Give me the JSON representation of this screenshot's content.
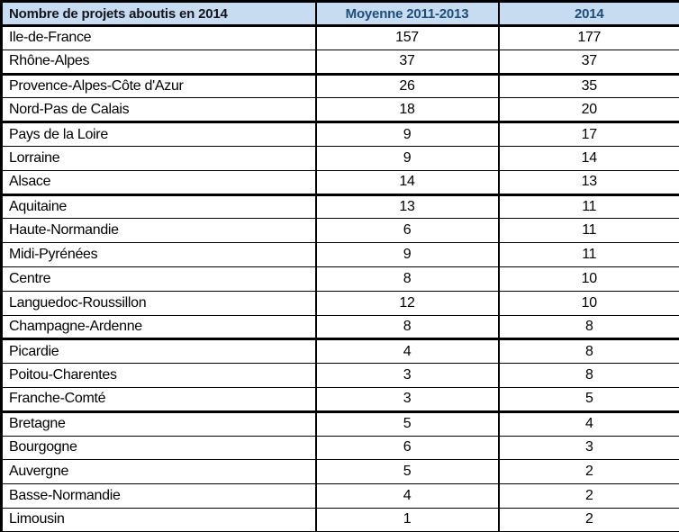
{
  "colors": {
    "header_bg": "#c7dcf1",
    "header_title_text": "#14141e",
    "header_numeric_text": "#1F4E79",
    "body_text": "#000000",
    "border": "#000000",
    "row_bg": "#ffffff"
  },
  "table": {
    "header": {
      "title": "Nombre de projets aboutis en 2014",
      "col_avg": "Moyenne 2011-2013",
      "col_2014": "2014"
    },
    "rows": [
      {
        "region": "Ile-de-France",
        "avg_2011_2013": 157,
        "value_2014": 177,
        "group_end": false
      },
      {
        "region": "Rhône-Alpes",
        "avg_2011_2013": 37,
        "value_2014": 37,
        "group_end": true
      },
      {
        "region": "Provence-Alpes-Côte d'Azur",
        "avg_2011_2013": 26,
        "value_2014": 35,
        "group_end": false
      },
      {
        "region": "Nord-Pas de Calais",
        "avg_2011_2013": 18,
        "value_2014": 20,
        "group_end": true
      },
      {
        "region": "Pays de la Loire",
        "avg_2011_2013": 9,
        "value_2014": 17,
        "group_end": false
      },
      {
        "region": "Lorraine",
        "avg_2011_2013": 9,
        "value_2014": 14,
        "group_end": false
      },
      {
        "region": "Alsace",
        "avg_2011_2013": 14,
        "value_2014": 13,
        "group_end": true
      },
      {
        "region": "Aquitaine",
        "avg_2011_2013": 13,
        "value_2014": 11,
        "group_end": false
      },
      {
        "region": "Haute-Normandie",
        "avg_2011_2013": 6,
        "value_2014": 11,
        "group_end": false
      },
      {
        "region": "Midi-Pyrénées",
        "avg_2011_2013": 9,
        "value_2014": 11,
        "group_end": false
      },
      {
        "region": "Centre",
        "avg_2011_2013": 8,
        "value_2014": 10,
        "group_end": false
      },
      {
        "region": "Languedoc-Roussillon",
        "avg_2011_2013": 12,
        "value_2014": 10,
        "group_end": false
      },
      {
        "region": "Champagne-Ardenne",
        "avg_2011_2013": 8,
        "value_2014": 8,
        "group_end": true
      },
      {
        "region": "Picardie",
        "avg_2011_2013": 4,
        "value_2014": 8,
        "group_end": false
      },
      {
        "region": "Poitou-Charentes",
        "avg_2011_2013": 3,
        "value_2014": 8,
        "group_end": false
      },
      {
        "region": "Franche-Comté",
        "avg_2011_2013": 3,
        "value_2014": 5,
        "group_end": true
      },
      {
        "region": "Bretagne",
        "avg_2011_2013": 5,
        "value_2014": 4,
        "group_end": false
      },
      {
        "region": "Bourgogne",
        "avg_2011_2013": 6,
        "value_2014": 3,
        "group_end": false
      },
      {
        "region": "Auvergne",
        "avg_2011_2013": 5,
        "value_2014": 2,
        "group_end": false
      },
      {
        "region": "Basse-Normandie",
        "avg_2011_2013": 4,
        "value_2014": 2,
        "group_end": false
      },
      {
        "region": "Limousin",
        "avg_2011_2013": 1,
        "value_2014": 2,
        "group_end": false
      }
    ]
  },
  "chart_data": {
    "type": "table",
    "title": "Nombre de projets aboutis en 2014",
    "columns": [
      "Nombre de projets aboutis en 2014",
      "Moyenne 2011-2013",
      "2014"
    ],
    "categories": [
      "Ile-de-France",
      "Rhône-Alpes",
      "Provence-Alpes-Côte d'Azur",
      "Nord-Pas de Calais",
      "Pays de la Loire",
      "Lorraine",
      "Alsace",
      "Aquitaine",
      "Haute-Normandie",
      "Midi-Pyrénées",
      "Centre",
      "Languedoc-Roussillon",
      "Champagne-Ardenne",
      "Picardie",
      "Poitou-Charentes",
      "Franche-Comté",
      "Bretagne",
      "Bourgogne",
      "Auvergne",
      "Basse-Normandie",
      "Limousin"
    ],
    "series": [
      {
        "name": "Moyenne 2011-2013",
        "values": [
          157,
          37,
          26,
          18,
          9,
          9,
          14,
          13,
          6,
          9,
          8,
          12,
          8,
          4,
          3,
          3,
          5,
          6,
          5,
          4,
          1
        ]
      },
      {
        "name": "2014",
        "values": [
          177,
          37,
          35,
          20,
          17,
          14,
          13,
          11,
          11,
          11,
          10,
          10,
          8,
          8,
          8,
          5,
          4,
          3,
          2,
          2,
          2
        ]
      }
    ]
  }
}
